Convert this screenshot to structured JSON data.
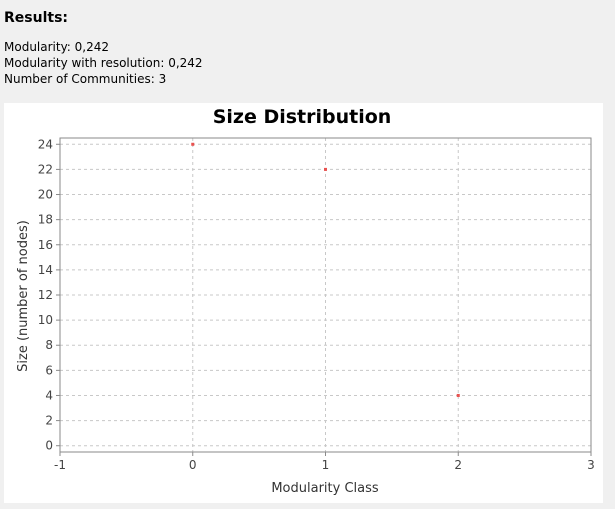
{
  "results": {
    "title": "Results:",
    "modularity": "Modularity: 0,242",
    "modularity_resolution": "Modularity with resolution: 0,242",
    "communities": "Number of Communities: 3"
  },
  "chart_data": {
    "type": "scatter",
    "title": "Size Distribution",
    "xlabel": "Modularity Class",
    "ylabel": "Size (number of nodes)",
    "xlim": [
      -1,
      3
    ],
    "ylim": [
      -0.5,
      24.5
    ],
    "xticks": [
      -1,
      0,
      1,
      2,
      3
    ],
    "yticks": [
      0,
      2,
      4,
      6,
      8,
      10,
      12,
      14,
      16,
      18,
      20,
      22,
      24
    ],
    "grid": true,
    "legend": "none",
    "series": [
      {
        "color": "#e8514f",
        "points": [
          {
            "x": 0,
            "y": 24
          },
          {
            "x": 1,
            "y": 22
          },
          {
            "x": 2,
            "y": 4
          }
        ]
      }
    ]
  }
}
